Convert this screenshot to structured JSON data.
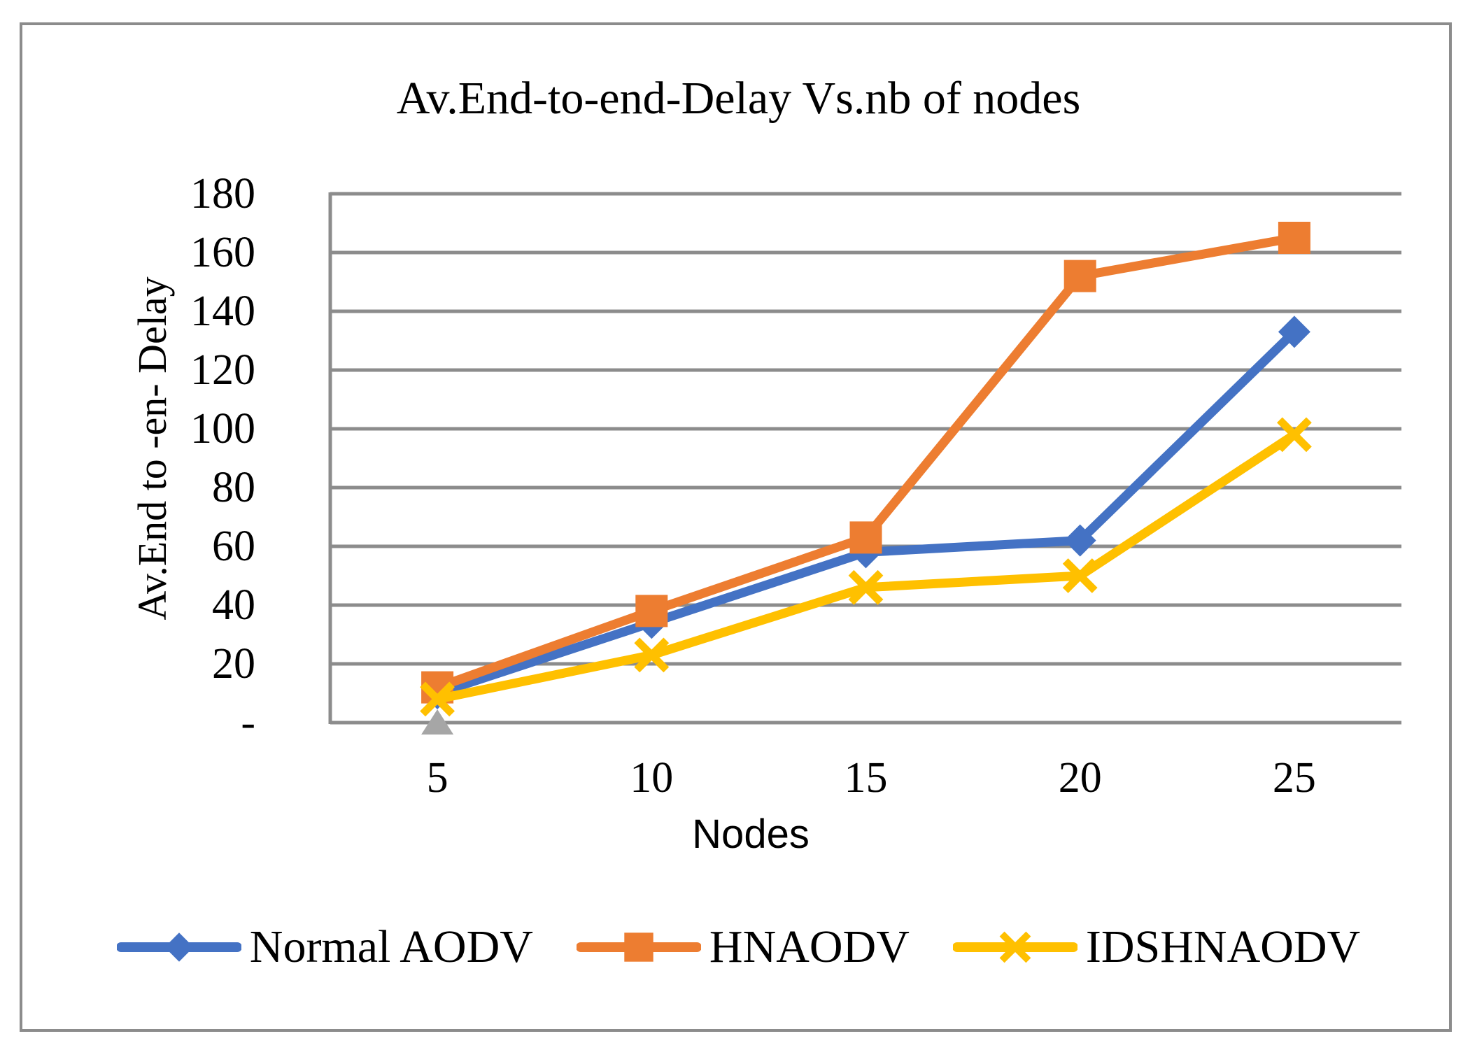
{
  "chart_data": {
    "type": "line",
    "title": "Av.End-to-end-Delay Vs.nb of nodes",
    "xlabel": "Nodes",
    "ylabel": "Av.End to -en- Delay",
    "categories": [
      "5",
      "10",
      "15",
      "20",
      "25"
    ],
    "x": [
      5,
      10,
      15,
      20,
      25
    ],
    "ylim": [
      0,
      180
    ],
    "y_tick_step": 20,
    "y_tick_labels": [
      "-",
      "20",
      "40",
      "60",
      "80",
      "100",
      "120",
      "140",
      "160",
      "180"
    ],
    "grid": true,
    "legend_position": "bottom",
    "colors": {
      "gridline": "#8C8C8C",
      "axis": "#8C8C8C",
      "figure_border": "#8C8C8C",
      "background": "#FFFFFF"
    },
    "series": [
      {
        "name": "Normal AODV",
        "color": "#4472C4",
        "marker": "diamond",
        "values": [
          10,
          34,
          58,
          62,
          133
        ]
      },
      {
        "name": "HNAODV",
        "color": "#ED7D31",
        "marker": "square",
        "values": [
          12,
          38,
          63,
          152,
          165
        ]
      },
      {
        "name": "IDSHNAODV",
        "color": "#FFC000",
        "marker": "x",
        "values": [
          8,
          23,
          46,
          50,
          98
        ]
      }
    ],
    "extra_points": [
      {
        "label": "unlabeled-gray-point",
        "color": "#A6A6A6",
        "marker": "triangle",
        "category": "5",
        "value": 0
      }
    ]
  }
}
